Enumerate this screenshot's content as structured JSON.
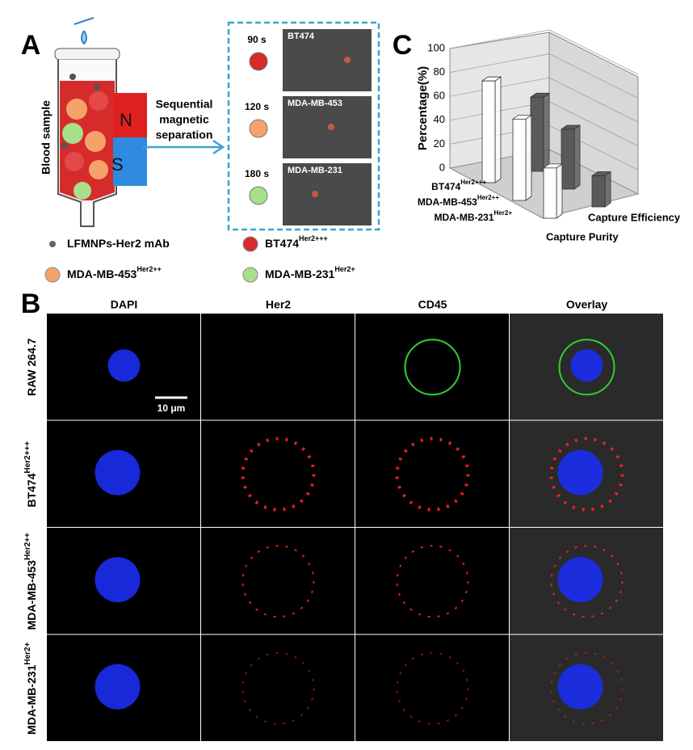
{
  "panel_labels": [
    "A",
    "B",
    "C"
  ],
  "panel_a": {
    "sample_label": "Blood sample",
    "magnet_labels": [
      "N",
      "S"
    ],
    "arrow_text": [
      "Sequential",
      "magnetic",
      "separation"
    ],
    "steps": [
      {
        "time": "90 s",
        "image_label": "BT474"
      },
      {
        "time": "120 s",
        "image_label": "MDA-MB-453"
      },
      {
        "time": "180 s",
        "image_label": "MDA-MB-231"
      }
    ],
    "legend": [
      {
        "label": "LFMNPs-Her2 mAb"
      },
      {
        "label": "BT474",
        "sup": "Her2+++"
      },
      {
        "label": "MDA-MB-453",
        "sup": "Her2++"
      },
      {
        "label": "MDA-MB-231",
        "sup": "Her2+"
      }
    ]
  },
  "panel_b": {
    "columns": [
      "DAPI",
      "Her2",
      "CD45",
      "Overlay"
    ],
    "rows": [
      {
        "label": "RAW 264.7"
      },
      {
        "label": "BT474",
        "sup": "Her2+++"
      },
      {
        "label": "MDA-MB-453",
        "sup": "Her2++"
      },
      {
        "label": "MDA-MB-231",
        "sup": "Her2+"
      }
    ],
    "scale_bar": "10 μm"
  },
  "panel_c": {
    "type": "bar3d",
    "ylabel": "Percentage(%)",
    "categories": [
      "BT474",
      "MDA-MB-453",
      "MDA-MB-231"
    ],
    "category_superscripts": [
      "Her2+++",
      "Her2++",
      "Her2+"
    ],
    "series": [
      {
        "name": "Capture Purity",
        "color": "#ffffff",
        "values": [
          85,
          68,
          42
        ]
      },
      {
        "name": "Capture Efficiency",
        "color": "#5a5a5a",
        "values": [
          62,
          50,
          26
        ]
      }
    ],
    "ylim": [
      0,
      100
    ],
    "yticks": [
      0,
      20,
      40,
      60,
      80,
      100
    ],
    "grid": true
  }
}
